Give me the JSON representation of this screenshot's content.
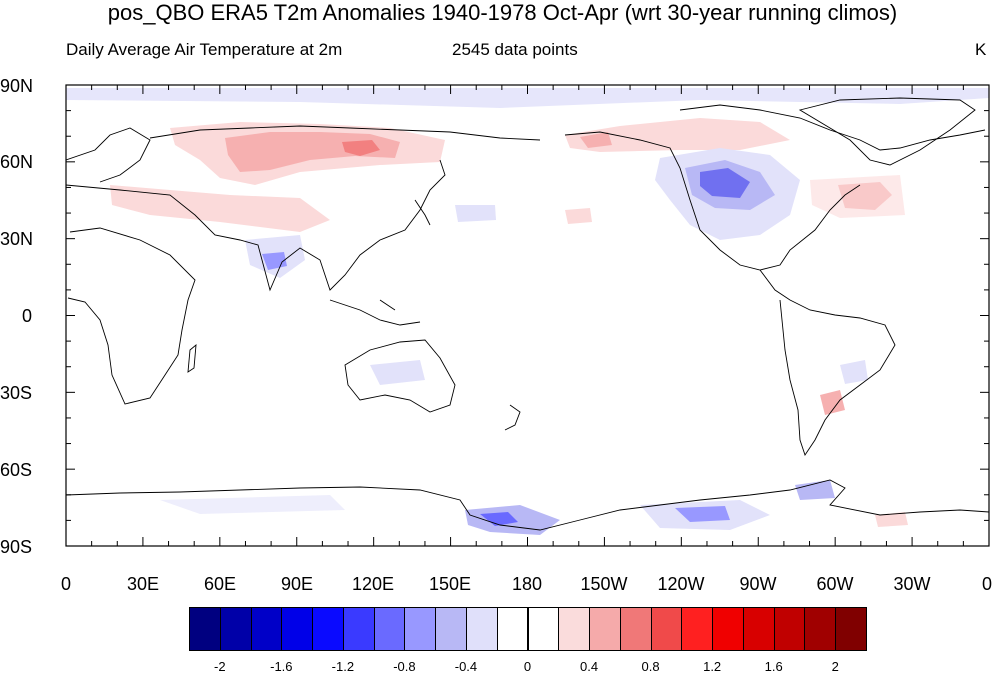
{
  "title": "pos_QBO ERA5 T2m Anomalies 1940-1978 Oct-Apr (wrt 30-year running climos)",
  "subtitle_left": "Daily Average Air Temperature at 2m",
  "subtitle_center": "2545 data points",
  "subtitle_right": "K",
  "lat_labels": [
    "90N",
    "60N",
    "30N",
    "0",
    "30S",
    "60S",
    "90S"
  ],
  "lon_labels": [
    "0",
    "30E",
    "60E",
    "90E",
    "120E",
    "150E",
    "180",
    "150W",
    "120W",
    "90W",
    "60W",
    "30W",
    "0"
  ],
  "colorbar": {
    "colors": [
      "#000080",
      "#0000a8",
      "#0000c8",
      "#0000e8",
      "#0a0aff",
      "#3a3aff",
      "#6a6aff",
      "#9898ff",
      "#b8b8f5",
      "#e0e0fa",
      "#ffffff",
      "#ffffff",
      "#fadcdc",
      "#f5aaaa",
      "#f07878",
      "#f04a4a",
      "#ff2020",
      "#f00000",
      "#d80000",
      "#c00000",
      "#a00000",
      "#800000"
    ],
    "labels": [
      "-2",
      "-1.6",
      "-1.2",
      "-0.8",
      "-0.4",
      "0",
      "0.4",
      "0.8",
      "1.2",
      "1.6",
      "2"
    ]
  }
}
